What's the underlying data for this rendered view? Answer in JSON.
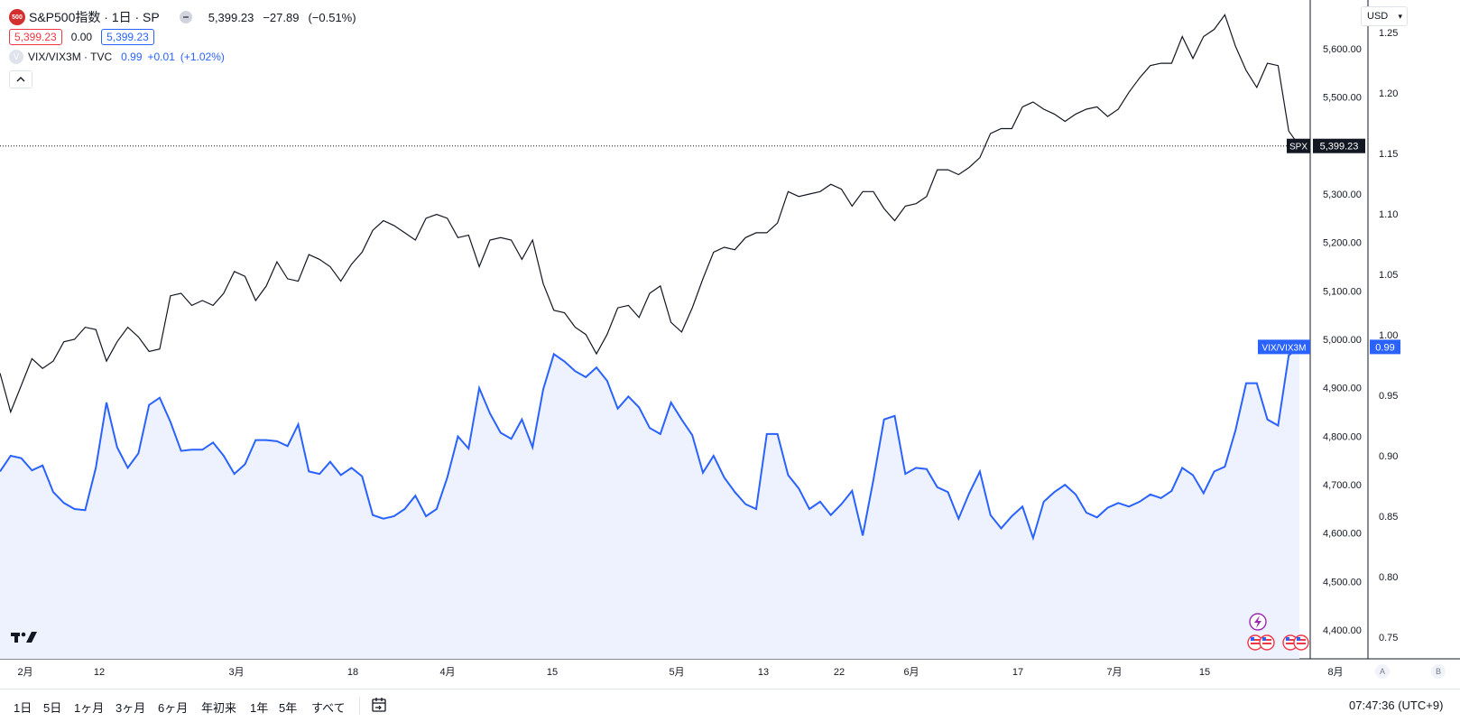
{
  "legend": {
    "logo_text": "500",
    "symbol": "S&P500指数 · 1日 · SP",
    "price": "5,399.23",
    "change": "−27.89",
    "change_pct": "(−0.51%)",
    "bid": "5,399.23",
    "spread": "0.00",
    "ask": "5,399.23",
    "vix_icon": "V",
    "vix_name": "VIX/VIX3M · TVC",
    "vix_value": "0.99",
    "vix_change": "+0.01",
    "vix_change_pct": "(+1.02%)",
    "collapse_icon": "chevron-up-icon"
  },
  "currency_selector": {
    "label": "USD"
  },
  "bottom_bar": {
    "ranges": [
      "1日",
      "5日",
      "1ヶ月",
      "3ヶ月",
      "6ヶ月",
      "年初来",
      "1年",
      "5年",
      "すべて"
    ],
    "timezone": "07:47:36 (UTC+9)"
  },
  "scale_buttons": [
    "A",
    "B"
  ],
  "colors": {
    "spx_line": "#131722",
    "vix_line": "#2962ff",
    "vix_fill": "#eef2ff",
    "accent_red": "#f23645"
  },
  "chart_data": {
    "type": "line",
    "x_ticks": [
      "2月",
      "12",
      "3月",
      "18",
      "4月",
      "15",
      "5月",
      "13",
      "22",
      "6月",
      "17",
      "7月",
      "15",
      "8月"
    ],
    "series": [
      {
        "name": "SPX",
        "axis": "left",
        "last_label": "5,399.23",
        "values": [
          4930,
          4850,
          4905,
          4960,
          4940,
          4955,
          4995,
          5000,
          5025,
          5020,
          4955,
          4995,
          5025,
          5005,
          4975,
          4980,
          5090,
          5095,
          5070,
          5080,
          5070,
          5095,
          5140,
          5130,
          5080,
          5110,
          5160,
          5125,
          5120,
          5175,
          5165,
          5150,
          5120,
          5155,
          5180,
          5225,
          5245,
          5235,
          5220,
          5205,
          5250,
          5258,
          5250,
          5210,
          5215,
          5150,
          5205,
          5210,
          5205,
          5165,
          5205,
          5115,
          5060,
          5055,
          5025,
          5010,
          4970,
          5010,
          5065,
          5070,
          5045,
          5095,
          5110,
          5035,
          5015,
          5065,
          5125,
          5180,
          5190,
          5185,
          5210,
          5220,
          5220,
          5240,
          5305,
          5295,
          5300,
          5305,
          5320,
          5310,
          5275,
          5305,
          5305,
          5270,
          5245,
          5275,
          5280,
          5295,
          5350,
          5350,
          5340,
          5355,
          5375,
          5425,
          5435,
          5435,
          5480,
          5490,
          5475,
          5465,
          5450,
          5465,
          5475,
          5480,
          5460,
          5475,
          5510,
          5540,
          5565,
          5570,
          5570,
          5625,
          5580,
          5625,
          5640,
          5670,
          5605,
          5555,
          5520,
          5570,
          5565,
          5430,
          5399
        ]
      },
      {
        "name": "VIX/VIX3M",
        "axis": "right",
        "last_label": "0.99",
        "values": [
          0.887,
          0.9,
          0.898,
          0.888,
          0.892,
          0.87,
          0.861,
          0.856,
          0.855,
          0.89,
          0.944,
          0.907,
          0.89,
          0.902,
          0.942,
          0.948,
          0.928,
          0.904,
          0.905,
          0.905,
          0.911,
          0.9,
          0.885,
          0.893,
          0.913,
          0.913,
          0.912,
          0.908,
          0.926,
          0.887,
          0.885,
          0.895,
          0.884,
          0.89,
          0.883,
          0.851,
          0.848,
          0.85,
          0.856,
          0.867,
          0.85,
          0.856,
          0.882,
          0.916,
          0.906,
          0.956,
          0.935,
          0.919,
          0.914,
          0.93,
          0.907,
          0.955,
          0.984,
          0.978,
          0.97,
          0.965,
          0.973,
          0.962,
          0.939,
          0.949,
          0.94,
          0.923,
          0.918,
          0.944,
          0.93,
          0.917,
          0.886,
          0.9,
          0.882,
          0.87,
          0.86,
          0.856,
          0.918,
          0.918,
          0.884,
          0.873,
          0.856,
          0.862,
          0.851,
          0.86,
          0.871,
          0.834,
          0.88,
          0.93,
          0.933,
          0.885,
          0.89,
          0.889,
          0.874,
          0.87,
          0.848,
          0.869,
          0.887,
          0.851,
          0.84,
          0.85,
          0.858,
          0.832,
          0.862,
          0.87,
          0.876,
          0.868,
          0.853,
          0.849,
          0.857,
          0.861,
          0.858,
          0.862,
          0.868,
          0.865,
          0.871,
          0.89,
          0.884,
          0.869,
          0.887,
          0.891,
          0.921,
          0.96,
          0.96,
          0.93,
          0.925,
          0.983,
          0.99
        ]
      }
    ],
    "y_left": {
      "ticks": [
        "5,600.00",
        "5,500.00",
        "5,400.00",
        "5,300.00",
        "5,200.00",
        "5,100.00",
        "5,000.00",
        "4,900.00",
        "4,800.00",
        "4,700.00",
        "4,600.00",
        "4,500.00",
        "4,400.00"
      ],
      "range": [
        4400,
        5700
      ]
    },
    "y_right": {
      "ticks": [
        "1.25",
        "1.20",
        "1.15",
        "1.10",
        "1.05",
        "1.00",
        "0.95",
        "0.90",
        "0.85",
        "0.80",
        "0.75"
      ],
      "range": [
        0.75,
        1.25
      ]
    },
    "last_price_line": 5399.23,
    "grid": false
  }
}
